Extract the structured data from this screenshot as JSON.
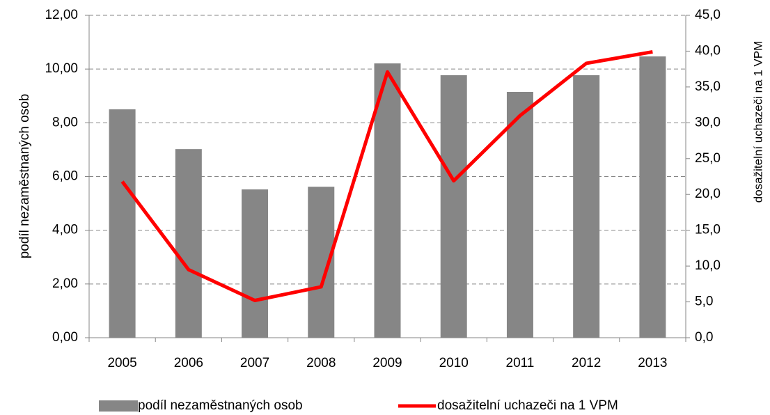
{
  "chart_data": {
    "type": "bar_line",
    "categories": [
      "2005",
      "2006",
      "2007",
      "2008",
      "2009",
      "2010",
      "2011",
      "2012",
      "2013"
    ],
    "y_label": "podíl nezaměstnaných osob",
    "y2_label": "dosažitelní uchazeči na 1 VPM",
    "series": [
      {
        "name": "podíl nezaměstnaných osob",
        "type": "bar",
        "color": "#868686",
        "values": [
          8.5,
          7.02,
          5.52,
          5.62,
          10.21,
          9.77,
          9.15,
          9.77,
          10.47
        ]
      },
      {
        "name": "dosažitelní uchazeči na 1 VPM",
        "type": "line",
        "axis": "y2",
        "color": "#ff0000",
        "values": [
          21.8,
          9.5,
          5.2,
          7.1,
          37.1,
          21.9,
          31.0,
          38.3,
          39.9
        ]
      }
    ],
    "ylim": [
      0,
      12
    ],
    "yticks": [
      {
        "value": 0,
        "label": "0,00"
      },
      {
        "value": 2,
        "label": "2,00"
      },
      {
        "value": 4,
        "label": "4,00"
      },
      {
        "value": 6,
        "label": "6,00"
      },
      {
        "value": 8,
        "label": "8,00"
      },
      {
        "value": 10,
        "label": "10,00"
      },
      {
        "value": 12,
        "label": "12,00"
      }
    ],
    "y2lim": [
      0,
      45
    ],
    "y2ticks": [
      {
        "value": 0,
        "label": "0,0"
      },
      {
        "value": 5,
        "label": "5,0"
      },
      {
        "value": 10,
        "label": "10,0"
      },
      {
        "value": 15,
        "label": "15,0"
      },
      {
        "value": 20,
        "label": "20,0"
      },
      {
        "value": 25,
        "label": "25,0"
      },
      {
        "value": 30,
        "label": "30,0"
      },
      {
        "value": 35,
        "label": "35,0"
      },
      {
        "value": 40,
        "label": "40,0"
      },
      {
        "value": 45,
        "label": "45,0"
      }
    ],
    "grid": true,
    "legend": "bottom"
  }
}
